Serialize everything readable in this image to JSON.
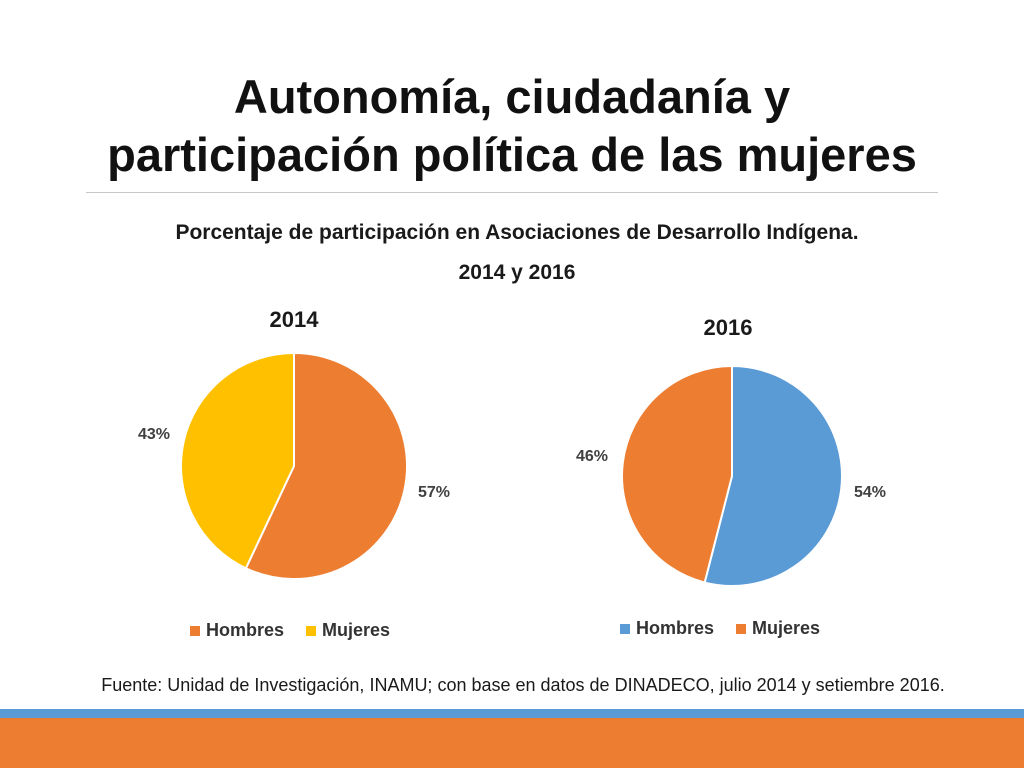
{
  "slide": {
    "title_line1": "Autonomía, ciudadanía y",
    "title_line2": "participación política de las mujeres",
    "subtitle_line1": "Porcentaje de participación en Asociaciones de Desarrollo Indígena.",
    "subtitle_line2": "2014 y 2016",
    "source": "Fuente: Unidad de Investigación, INAMU; con base en datos de DINADECO, julio 2014 y setiembre 2016."
  },
  "colors": {
    "band_blue": "#5b9bd5",
    "band_orange": "#ed7d31"
  },
  "chart_data": [
    {
      "type": "pie",
      "title": "2014",
      "categories": [
        "Hombres",
        "Mujeres"
      ],
      "values": [
        57,
        43
      ],
      "labels": [
        "57%",
        "43%"
      ],
      "colors": [
        "#ed7d31",
        "#ffc000"
      ],
      "legend": "bottom"
    },
    {
      "type": "pie",
      "title": "2016",
      "categories": [
        "Hombres",
        "Mujeres"
      ],
      "values": [
        54,
        46
      ],
      "labels": [
        "54%",
        "46%"
      ],
      "colors": [
        "#5b9bd5",
        "#ed7d31"
      ],
      "legend": "bottom"
    }
  ]
}
